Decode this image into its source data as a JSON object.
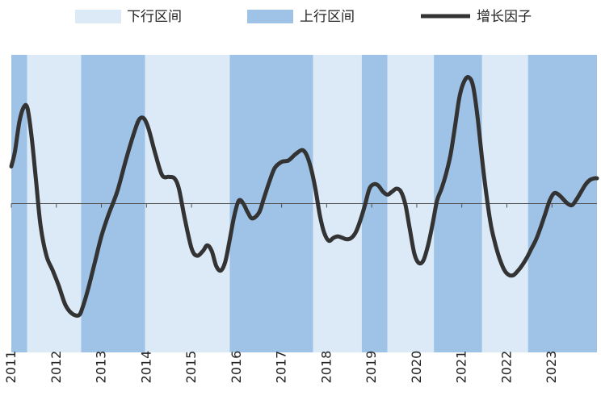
{
  "chart_data": {
    "type": "line",
    "legend": [
      {
        "label": "下行区间",
        "kind": "band",
        "color": "#dce9f7"
      },
      {
        "label": "上行区间",
        "kind": "band",
        "color": "#9fc3e7"
      },
      {
        "label": "增长因子",
        "kind": "line",
        "color": "#333333"
      }
    ],
    "x_ticks": [
      "2011",
      "2012",
      "2013",
      "2014",
      "2015",
      "2016",
      "2017",
      "2018",
      "2019",
      "2020",
      "2021",
      "2022",
      "2023"
    ],
    "xlim": [
      2011.0,
      2024.0
    ],
    "ylim": [
      -1.0,
      1.0
    ],
    "zero_line": true,
    "legend_position": "top",
    "bands": [
      {
        "type": "up",
        "start": 2011.0,
        "end": 2011.35
      },
      {
        "type": "down",
        "start": 2011.35,
        "end": 2012.55
      },
      {
        "type": "up",
        "start": 2012.55,
        "end": 2013.97
      },
      {
        "type": "down",
        "start": 2013.97,
        "end": 2015.85
      },
      {
        "type": "up",
        "start": 2015.85,
        "end": 2017.7
      },
      {
        "type": "down",
        "start": 2017.7,
        "end": 2018.78
      },
      {
        "type": "up",
        "start": 2018.78,
        "end": 2019.35
      },
      {
        "type": "down",
        "start": 2019.35,
        "end": 2020.38
      },
      {
        "type": "up",
        "start": 2020.38,
        "end": 2021.45
      },
      {
        "type": "down",
        "start": 2021.45,
        "end": 2022.47
      },
      {
        "type": "up",
        "start": 2022.47,
        "end": 2024.0
      }
    ],
    "series": [
      {
        "name": "增长因子",
        "x": [
          2011.0,
          2011.08,
          2011.18,
          2011.28,
          2011.36,
          2011.45,
          2011.55,
          2011.65,
          2011.78,
          2011.92,
          2012.05,
          2012.2,
          2012.35,
          2012.5,
          2012.58,
          2012.7,
          2012.85,
          2013.0,
          2013.15,
          2013.35,
          2013.55,
          2013.75,
          2013.85,
          2013.95,
          2014.05,
          2014.2,
          2014.35,
          2014.5,
          2014.62,
          2014.72,
          2014.85,
          2015.0,
          2015.12,
          2015.25,
          2015.35,
          2015.45,
          2015.55,
          2015.65,
          2015.75,
          2015.85,
          2015.95,
          2016.05,
          2016.15,
          2016.25,
          2016.35,
          2016.5,
          2016.6,
          2016.72,
          2016.85,
          2017.0,
          2017.15,
          2017.3,
          2017.45,
          2017.55,
          2017.65,
          2017.75,
          2017.85,
          2017.95,
          2018.05,
          2018.15,
          2018.25,
          2018.35,
          2018.45,
          2018.55,
          2018.65,
          2018.75,
          2018.85,
          2018.95,
          2019.05,
          2019.15,
          2019.25,
          2019.35,
          2019.45,
          2019.55,
          2019.65,
          2019.75,
          2019.85,
          2019.95,
          2020.05,
          2020.15,
          2020.25,
          2020.35,
          2020.45,
          2020.55,
          2020.65,
          2020.75,
          2020.85,
          2020.95,
          2021.05,
          2021.15,
          2021.25,
          2021.35,
          2021.45,
          2021.55,
          2021.65,
          2021.75,
          2021.85,
          2021.95,
          2022.05,
          2022.15,
          2022.25,
          2022.35,
          2022.45,
          2022.55,
          2022.65,
          2022.75,
          2022.85,
          2022.95,
          2023.05,
          2023.15,
          2023.25,
          2023.35,
          2023.45,
          2023.55,
          2023.65,
          2023.75,
          2023.85,
          2023.95,
          2024.0
        ],
        "values": [
          0.25,
          0.35,
          0.55,
          0.65,
          0.64,
          0.45,
          0.15,
          -0.15,
          -0.35,
          -0.45,
          -0.55,
          -0.68,
          -0.74,
          -0.75,
          -0.7,
          -0.58,
          -0.4,
          -0.22,
          -0.08,
          0.08,
          0.3,
          0.5,
          0.57,
          0.57,
          0.5,
          0.33,
          0.19,
          0.18,
          0.17,
          0.1,
          -0.1,
          -0.3,
          -0.35,
          -0.32,
          -0.28,
          -0.32,
          -0.42,
          -0.45,
          -0.39,
          -0.24,
          -0.08,
          0.02,
          0.0,
          -0.06,
          -0.1,
          -0.06,
          0.03,
          0.14,
          0.24,
          0.28,
          0.29,
          0.33,
          0.36,
          0.33,
          0.24,
          0.1,
          -0.08,
          -0.2,
          -0.25,
          -0.23,
          -0.22,
          -0.23,
          -0.24,
          -0.23,
          -0.19,
          -0.11,
          -0.01,
          0.1,
          0.13,
          0.12,
          0.08,
          0.06,
          0.08,
          0.1,
          0.08,
          -0.01,
          -0.18,
          -0.34,
          -0.4,
          -0.38,
          -0.28,
          -0.14,
          0.02,
          0.1,
          0.2,
          0.33,
          0.52,
          0.72,
          0.82,
          0.85,
          0.79,
          0.58,
          0.3,
          0.05,
          -0.15,
          -0.28,
          -0.38,
          -0.45,
          -0.48,
          -0.48,
          -0.45,
          -0.41,
          -0.36,
          -0.3,
          -0.24,
          -0.16,
          -0.07,
          0.02,
          0.07,
          0.06,
          0.03,
          0.0,
          -0.01,
          0.03,
          0.08,
          0.13,
          0.16,
          0.17,
          0.17
        ]
      }
    ]
  }
}
